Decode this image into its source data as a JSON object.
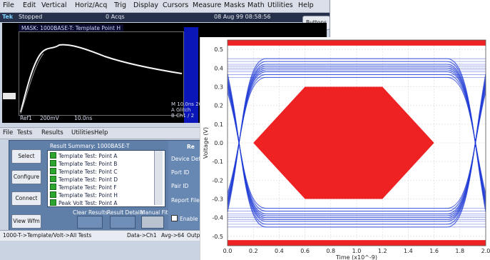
{
  "menu": [
    "File",
    "Edit",
    "Vertical",
    "Horiz/Acq",
    "Trig",
    "Display",
    "Cursors",
    "Measure",
    "Masks",
    "Math",
    "Utilities",
    "Help"
  ],
  "status": {
    "brand": "Tek",
    "state": "Stopped",
    "acqs": "0 Acqs",
    "date": "08 Aug 99 08:58:56"
  },
  "buttons_label": "Buttons",
  "mask_title": "MASK: 1000BASE-T: Template Point H",
  "scope": {
    "ref": "Ref1",
    "volts": "200mV",
    "time": "10.0ns"
  },
  "info": [
    "M 10.0ns 20",
    "A Glitch",
    "B Ch1 / 2"
  ],
  "dialog_menu": [
    "File",
    "Tests",
    "Results",
    "Utilities",
    "Help"
  ],
  "side_buttons": [
    "Select",
    "Configure",
    "Connect",
    "View Wfm"
  ],
  "summary_label": "Result Summary: 1000BASE-T",
  "tests": [
    "Template Test: Point A",
    "Template Test: Point B",
    "Template Test: Point C",
    "Template Test: Point D",
    "Template Test: Point F",
    "Template Test: Point H",
    "Peak Volt Test: Point A"
  ],
  "lower_buttons": [
    "Clear Results",
    "Result Details",
    "Manual Fit"
  ],
  "right_panel": [
    "Device Details",
    "Port ID",
    "Pair ID",
    "Report File",
    "Enable P"
  ],
  "right_head": "Re",
  "bottom": [
    "1000-T->Template/Volt->All Tests",
    "Data->Ch1",
    "Avg->64",
    "Outp"
  ],
  "colors": {
    "eye": "#1f3bd6",
    "mask": "#ee2222",
    "panel": "#5f7ea8"
  },
  "chart_data": {
    "type": "line",
    "ylabel": "Voltage (V)",
    "xlabel": "Time (x10^-9)",
    "xlim": [
      0,
      2.0
    ],
    "ylim": [
      -0.55,
      0.55
    ],
    "xticks": [
      "0.0",
      "0.2",
      "0.4",
      "0.6",
      "0.8",
      "1.0",
      "1.2",
      "1.4",
      "1.6",
      "1.8",
      "2.0"
    ],
    "yticks": [
      "0.5",
      "0.4",
      "0.3",
      "0.2",
      "0.1",
      "0.0",
      "-0.1",
      "-0.2",
      "-0.3",
      "-0.4",
      "-0.5"
    ],
    "mask_hexagon": [
      [
        0.2,
        0.0
      ],
      [
        0.6,
        0.3
      ],
      [
        1.2,
        0.3
      ],
      [
        1.6,
        0.0
      ],
      [
        1.2,
        -0.3
      ],
      [
        0.6,
        -0.3
      ]
    ],
    "eye_levels": [
      0.4,
      -0.4
    ]
  }
}
